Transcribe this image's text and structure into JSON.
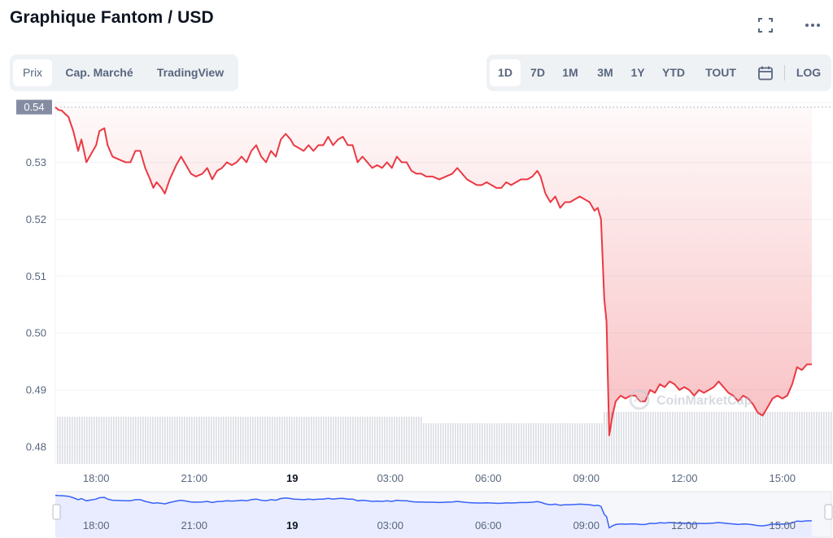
{
  "header": {
    "title": "Graphique Fantom / USD",
    "expand_icon": "expand-icon",
    "more_icon": "more-icon"
  },
  "tabs": [
    "Prix",
    "Cap. Marché",
    "TradingView"
  ],
  "active_tab": "Prix",
  "ranges": [
    "1D",
    "7D",
    "1M",
    "3M",
    "1Y",
    "YTD",
    "TOUT"
  ],
  "active_range": "1D",
  "log_label": "LOG",
  "calendar_icon": "calendar-icon",
  "colors": {
    "line": "#ea3943",
    "fill": "#ea3943",
    "volume": "#d6d9de",
    "navigator": "#3861fb",
    "navigator_fill": "#e8ecfe",
    "price_tag": "#858ca2"
  },
  "watermark": "CoinMarketCap",
  "chart_data": {
    "type": "line",
    "y_ticks": [
      "0.53",
      "0.52",
      "0.51",
      "0.50",
      "0.49",
      "0.48"
    ],
    "ylim": [
      0.477,
      0.5405
    ],
    "x_ticks": [
      {
        "label": "18:00",
        "hour": 18,
        "bold": false
      },
      {
        "label": "21:00",
        "hour": 21,
        "bold": false
      },
      {
        "label": "19",
        "hour": 24,
        "bold": true
      },
      {
        "label": "03:00",
        "hour": 27,
        "bold": false
      },
      {
        "label": "06:00",
        "hour": 30,
        "bold": false
      },
      {
        "label": "09:00",
        "hour": 33,
        "bold": false
      },
      {
        "label": "12:00",
        "hour": 36,
        "bold": false
      },
      {
        "label": "15:00",
        "hour": 39,
        "bold": false
      }
    ],
    "xlim": [
      16.75,
      40.5
    ],
    "open_price": "0.54",
    "open_value": 0.5397,
    "series": [
      {
        "points": [
          [
            16.75,
            0.5397
          ],
          [
            16.85,
            0.5392
          ],
          [
            16.95,
            0.5391
          ],
          [
            17.05,
            0.5385
          ],
          [
            17.15,
            0.538
          ],
          [
            17.3,
            0.5355
          ],
          [
            17.45,
            0.532
          ],
          [
            17.55,
            0.534
          ],
          [
            17.7,
            0.53
          ],
          [
            17.85,
            0.5315
          ],
          [
            18.0,
            0.533
          ],
          [
            18.1,
            0.5355
          ],
          [
            18.25,
            0.536
          ],
          [
            18.35,
            0.533
          ],
          [
            18.5,
            0.531
          ],
          [
            18.7,
            0.5305
          ],
          [
            18.9,
            0.53
          ],
          [
            19.05,
            0.53
          ],
          [
            19.2,
            0.532
          ],
          [
            19.35,
            0.532
          ],
          [
            19.5,
            0.529
          ],
          [
            19.65,
            0.527
          ],
          [
            19.75,
            0.5255
          ],
          [
            19.85,
            0.5265
          ],
          [
            20.0,
            0.5255
          ],
          [
            20.1,
            0.5245
          ],
          [
            20.25,
            0.527
          ],
          [
            20.45,
            0.5295
          ],
          [
            20.6,
            0.531
          ],
          [
            20.75,
            0.5295
          ],
          [
            20.9,
            0.528
          ],
          [
            21.05,
            0.5275
          ],
          [
            21.25,
            0.528
          ],
          [
            21.4,
            0.529
          ],
          [
            21.55,
            0.527
          ],
          [
            21.7,
            0.5285
          ],
          [
            21.85,
            0.529
          ],
          [
            22.0,
            0.53
          ],
          [
            22.15,
            0.5295
          ],
          [
            22.3,
            0.53
          ],
          [
            22.45,
            0.531
          ],
          [
            22.6,
            0.53
          ],
          [
            22.75,
            0.532
          ],
          [
            22.9,
            0.533
          ],
          [
            23.05,
            0.531
          ],
          [
            23.2,
            0.53
          ],
          [
            23.35,
            0.532
          ],
          [
            23.5,
            0.531
          ],
          [
            23.65,
            0.534
          ],
          [
            23.8,
            0.535
          ],
          [
            23.95,
            0.534
          ],
          [
            24.05,
            0.533
          ],
          [
            24.2,
            0.5325
          ],
          [
            24.35,
            0.532
          ],
          [
            24.5,
            0.533
          ],
          [
            24.65,
            0.532
          ],
          [
            24.8,
            0.533
          ],
          [
            24.95,
            0.533
          ],
          [
            25.1,
            0.5345
          ],
          [
            25.25,
            0.533
          ],
          [
            25.4,
            0.534
          ],
          [
            25.55,
            0.5345
          ],
          [
            25.7,
            0.533
          ],
          [
            25.85,
            0.533
          ],
          [
            26.0,
            0.53
          ],
          [
            26.15,
            0.531
          ],
          [
            26.3,
            0.53
          ],
          [
            26.45,
            0.529
          ],
          [
            26.6,
            0.5295
          ],
          [
            26.75,
            0.529
          ],
          [
            26.9,
            0.53
          ],
          [
            27.05,
            0.529
          ],
          [
            27.2,
            0.531
          ],
          [
            27.35,
            0.53
          ],
          [
            27.5,
            0.53
          ],
          [
            27.65,
            0.5285
          ],
          [
            27.8,
            0.528
          ],
          [
            27.95,
            0.528
          ],
          [
            28.1,
            0.5275
          ],
          [
            28.3,
            0.5275
          ],
          [
            28.5,
            0.527
          ],
          [
            28.7,
            0.5275
          ],
          [
            28.9,
            0.528
          ],
          [
            29.05,
            0.529
          ],
          [
            29.2,
            0.528
          ],
          [
            29.35,
            0.527
          ],
          [
            29.5,
            0.5265
          ],
          [
            29.65,
            0.526
          ],
          [
            29.8,
            0.526
          ],
          [
            29.95,
            0.5265
          ],
          [
            30.1,
            0.526
          ],
          [
            30.25,
            0.5255
          ],
          [
            30.4,
            0.5255
          ],
          [
            30.55,
            0.5265
          ],
          [
            30.7,
            0.526
          ],
          [
            30.85,
            0.5265
          ],
          [
            31.0,
            0.527
          ],
          [
            31.2,
            0.527
          ],
          [
            31.35,
            0.5275
          ],
          [
            31.5,
            0.5285
          ],
          [
            31.6,
            0.5275
          ],
          [
            31.75,
            0.5245
          ],
          [
            31.9,
            0.523
          ],
          [
            32.05,
            0.524
          ],
          [
            32.2,
            0.522
          ],
          [
            32.35,
            0.523
          ],
          [
            32.5,
            0.523
          ],
          [
            32.65,
            0.5235
          ],
          [
            32.8,
            0.524
          ],
          [
            32.95,
            0.5235
          ],
          [
            33.1,
            0.523
          ],
          [
            33.25,
            0.5215
          ],
          [
            33.35,
            0.522
          ],
          [
            33.45,
            0.52
          ],
          [
            33.55,
            0.506
          ],
          [
            33.62,
            0.502
          ],
          [
            33.7,
            0.482
          ],
          [
            33.8,
            0.4855
          ],
          [
            33.9,
            0.488
          ],
          [
            34.05,
            0.489
          ],
          [
            34.2,
            0.4885
          ],
          [
            34.35,
            0.489
          ],
          [
            34.5,
            0.489
          ],
          [
            34.65,
            0.488
          ],
          [
            34.8,
            0.488
          ],
          [
            34.95,
            0.49
          ],
          [
            35.1,
            0.4895
          ],
          [
            35.25,
            0.491
          ],
          [
            35.4,
            0.4905
          ],
          [
            35.55,
            0.4915
          ],
          [
            35.7,
            0.491
          ],
          [
            35.85,
            0.49
          ],
          [
            36.0,
            0.4905
          ],
          [
            36.15,
            0.49
          ],
          [
            36.3,
            0.489
          ],
          [
            36.45,
            0.49
          ],
          [
            36.6,
            0.4895
          ],
          [
            36.75,
            0.49
          ],
          [
            36.9,
            0.4905
          ],
          [
            37.05,
            0.4915
          ],
          [
            37.2,
            0.4905
          ],
          [
            37.35,
            0.4895
          ],
          [
            37.5,
            0.489
          ],
          [
            37.65,
            0.488
          ],
          [
            37.8,
            0.489
          ],
          [
            37.95,
            0.4885
          ],
          [
            38.1,
            0.4875
          ],
          [
            38.25,
            0.486
          ],
          [
            38.4,
            0.4855
          ],
          [
            38.55,
            0.487
          ],
          [
            38.7,
            0.4885
          ],
          [
            38.85,
            0.489
          ],
          [
            39.0,
            0.4885
          ],
          [
            39.15,
            0.489
          ],
          [
            39.3,
            0.491
          ],
          [
            39.45,
            0.494
          ],
          [
            39.6,
            0.4935
          ],
          [
            39.75,
            0.4945
          ],
          [
            39.9,
            0.4945
          ]
        ]
      }
    ],
    "volume_level": 0.65
  }
}
